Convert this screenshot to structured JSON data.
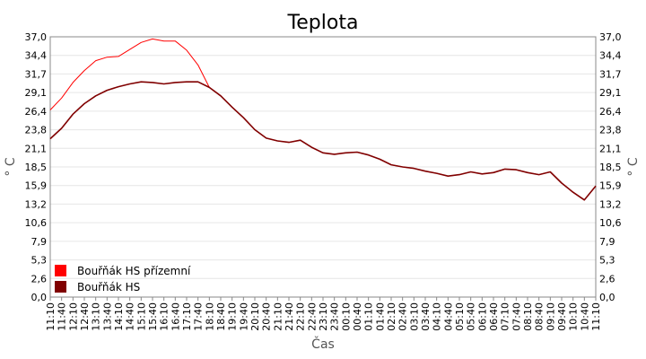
{
  "chart_data": {
    "type": "line",
    "title": "Teplota",
    "xlabel": "Čas",
    "ylabel": "° C",
    "ylim": [
      0,
      37.0
    ],
    "yticks": [
      "0,0",
      "2,6",
      "5,3",
      "7,9",
      "10,6",
      "13,2",
      "15,9",
      "18,5",
      "21,1",
      "23,8",
      "26,4",
      "29,1",
      "31,7",
      "34,4",
      "37,0"
    ],
    "xticks": [
      "11:10",
      "11:40",
      "12:10",
      "12:40",
      "13:10",
      "13:40",
      "14:10",
      "14:40",
      "15:10",
      "15:40",
      "16:10",
      "16:40",
      "17:10",
      "17:40",
      "18:10",
      "18:40",
      "19:10",
      "19:40",
      "20:10",
      "20:40",
      "21:10",
      "21:40",
      "22:10",
      "22:40",
      "23:10",
      "23:40",
      "00:10",
      "00:40",
      "01:10",
      "01:40",
      "02:10",
      "02:40",
      "03:10",
      "03:40",
      "04:10",
      "04:40",
      "05:10",
      "05:40",
      "06:10",
      "06:40",
      "07:10",
      "07:40",
      "08:10",
      "08:40",
      "09:10",
      "09:40",
      "10:10",
      "10:40",
      "11:10"
    ],
    "x": [
      "11:10",
      "11:40",
      "12:10",
      "12:40",
      "13:10",
      "13:40",
      "14:10",
      "14:40",
      "15:10",
      "15:40",
      "16:10",
      "16:40",
      "17:10",
      "17:40",
      "18:10",
      "18:40",
      "19:10",
      "19:40",
      "20:10",
      "20:40",
      "21:10",
      "21:40",
      "22:10",
      "22:40",
      "23:10",
      "23:40",
      "00:10",
      "00:40",
      "01:10",
      "01:40",
      "02:10",
      "02:40",
      "03:10",
      "03:40",
      "04:10",
      "04:40",
      "05:10",
      "05:40",
      "06:10",
      "06:40",
      "07:10",
      "07:40",
      "08:10",
      "08:40",
      "09:10",
      "09:40",
      "10:10",
      "10:40",
      "11:10"
    ],
    "grid": true,
    "legend_position": "bottom-left",
    "series": [
      {
        "name": "Bouřňák HS přízemní",
        "color": "#ff0000",
        "values": [
          26.6,
          28.3,
          30.5,
          32.2,
          33.6,
          34.1,
          34.2,
          35.2,
          36.2,
          36.7,
          36.4,
          36.4,
          35.1,
          33.0,
          29.8,
          28.6,
          27.0,
          25.5,
          23.8,
          22.6,
          22.2,
          22.0,
          22.3,
          21.3,
          20.5,
          20.3,
          20.5,
          20.6,
          20.2,
          19.6,
          18.8,
          18.5,
          18.3,
          17.9,
          17.6,
          17.2,
          17.4,
          17.8,
          17.5,
          17.7,
          18.2,
          18.1,
          17.7,
          17.4,
          17.8,
          16.2,
          14.9,
          13.8,
          15.8
        ]
      },
      {
        "name": "Bouřňák HS",
        "color": "#800000",
        "values": [
          22.5,
          24.0,
          26.0,
          27.5,
          28.6,
          29.4,
          29.9,
          30.3,
          30.6,
          30.5,
          30.3,
          30.5,
          30.6,
          30.6,
          29.8,
          28.6,
          27.0,
          25.5,
          23.8,
          22.6,
          22.2,
          22.0,
          22.3,
          21.3,
          20.5,
          20.3,
          20.5,
          20.6,
          20.2,
          19.6,
          18.8,
          18.5,
          18.3,
          17.9,
          17.6,
          17.2,
          17.4,
          17.8,
          17.5,
          17.7,
          18.2,
          18.1,
          17.7,
          17.4,
          17.8,
          16.2,
          14.9,
          13.8,
          15.8
        ]
      }
    ]
  }
}
